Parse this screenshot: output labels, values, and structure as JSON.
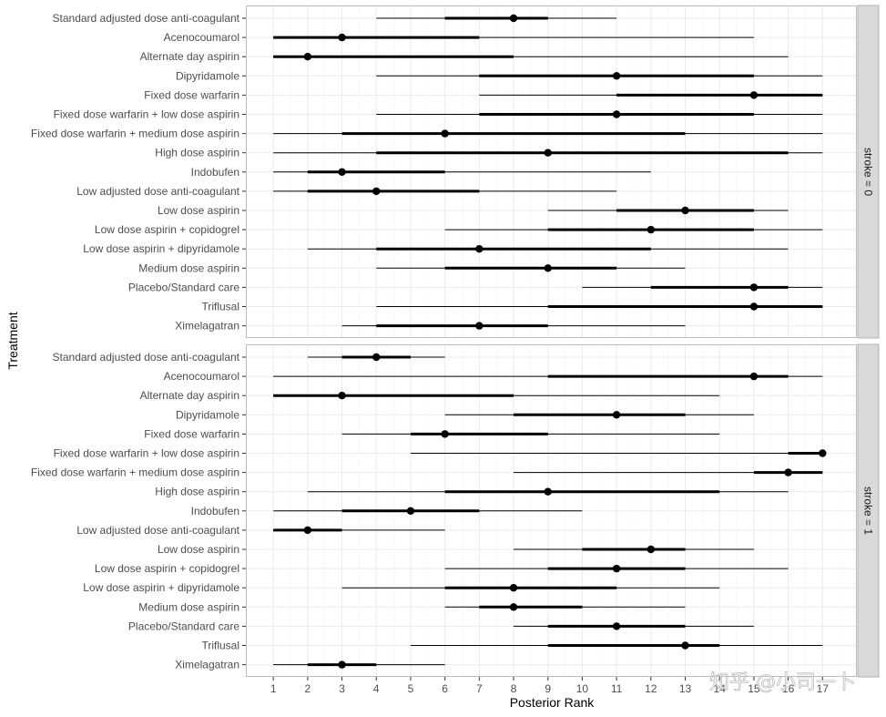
{
  "chart_data": {
    "type": "forest",
    "xlabel": "Posterior Rank",
    "ylabel": "Treatment",
    "xlim": [
      0.2,
      18.0
    ],
    "x_ticks": [
      1,
      2,
      3,
      4,
      5,
      6,
      7,
      8,
      9,
      10,
      11,
      12,
      13,
      14,
      15,
      16,
      17
    ],
    "x_tick_labels": [
      "1",
      "2",
      "3",
      "4",
      "5",
      "6",
      "7",
      "8",
      "9",
      "10",
      "11",
      "12",
      "13",
      "14",
      "15",
      "16",
      "17"
    ],
    "grid": true,
    "treatments": [
      "Standard adjusted dose anti-coagulant",
      "Acenocoumarol",
      "Alternate day aspirin",
      "Dipyridamole",
      "Fixed dose warfarin",
      "Fixed dose warfarin + low dose aspirin",
      "Fixed dose warfarin + medium dose aspirin",
      "High dose aspirin",
      "Indobufen",
      "Low adjusted dose anti-coagulant",
      "Low dose aspirin",
      "Low dose aspirin + copidogrel",
      "Low dose aspirin + dipyridamole",
      "Medium dose aspirin",
      "Placebo/Standard care",
      "Triflusal",
      "Ximelagatran"
    ],
    "panels": [
      {
        "strip_label": "stroke = 0",
        "median": [
          8,
          3,
          2,
          11,
          15,
          11,
          6,
          9,
          3,
          4,
          13,
          12,
          7,
          9,
          15,
          15,
          7
        ],
        "inner_low": [
          6,
          1,
          1,
          7,
          11,
          7,
          3,
          4,
          2,
          2,
          11,
          9,
          4,
          6,
          12,
          9,
          4
        ],
        "inner_high": [
          9,
          7,
          8,
          15,
          17,
          15,
          13,
          16,
          6,
          7,
          15,
          15,
          12,
          11,
          16,
          17,
          9
        ],
        "outer_low": [
          4,
          1,
          1,
          4,
          7,
          4,
          1,
          1,
          1,
          1,
          9,
          6,
          2,
          4,
          10,
          4,
          3
        ],
        "outer_high": [
          11,
          15,
          16,
          17,
          17,
          17,
          17,
          17,
          12,
          11,
          16,
          17,
          16,
          13,
          17,
          17,
          13
        ]
      },
      {
        "strip_label": "stroke = 1",
        "median": [
          4,
          15,
          3,
          11,
          6,
          17,
          16,
          9,
          5,
          2,
          12,
          11,
          8,
          8,
          11,
          13,
          3
        ],
        "inner_low": [
          3,
          9,
          1,
          8,
          5,
          16,
          15,
          6,
          3,
          1,
          10,
          9,
          6,
          7,
          9,
          9,
          2
        ],
        "inner_high": [
          5,
          16,
          8,
          13,
          9,
          17,
          17,
          14,
          7,
          3,
          13,
          13,
          11,
          10,
          13,
          14,
          4
        ],
        "outer_low": [
          2,
          1,
          1,
          6,
          3,
          5,
          8,
          2,
          1,
          1,
          8,
          6,
          3,
          6,
          8,
          5,
          1
        ],
        "outer_high": [
          6,
          17,
          14,
          15,
          14,
          17,
          17,
          16,
          10,
          6,
          15,
          16,
          14,
          13,
          15,
          17,
          6
        ]
      }
    ]
  },
  "watermark": {
    "text": "知乎 @小司一卜"
  }
}
